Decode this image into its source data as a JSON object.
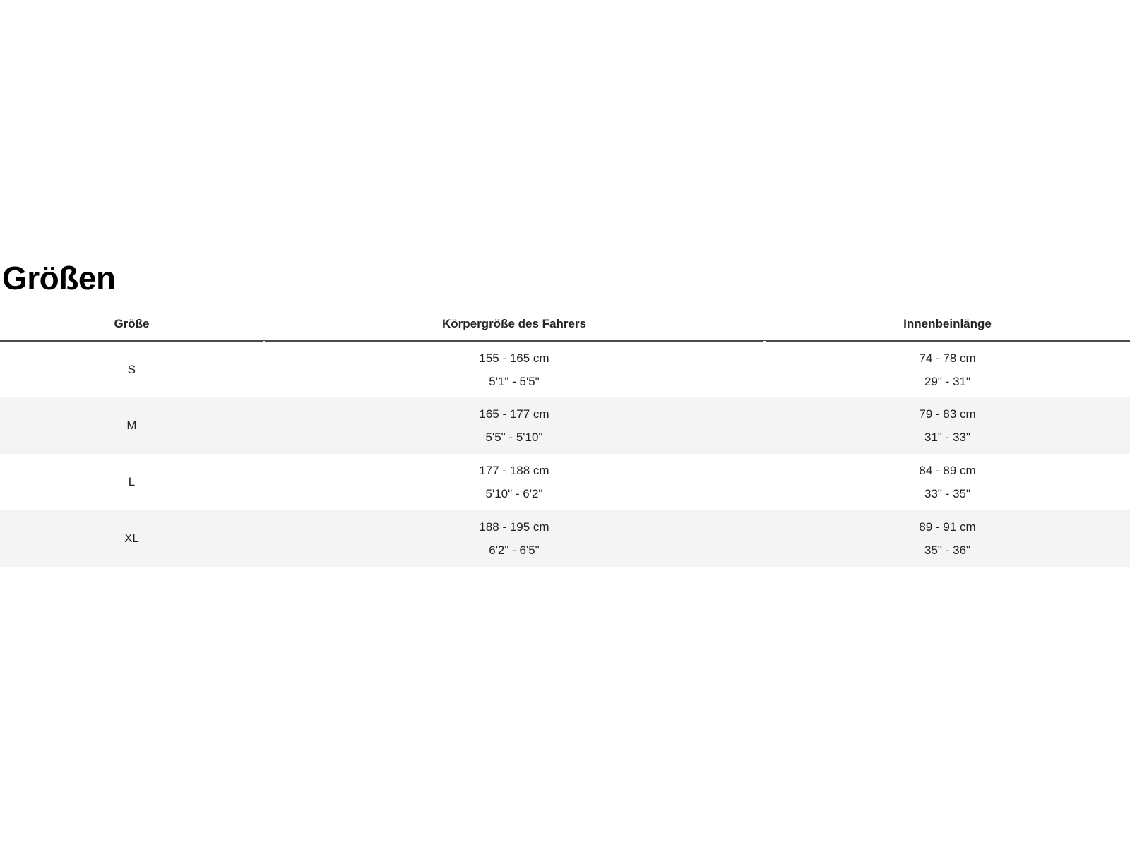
{
  "page": {
    "title": "Größen"
  },
  "table": {
    "columns": [
      {
        "label": "Größe"
      },
      {
        "label": "Körpergröße des Fahrers"
      },
      {
        "label": "Innenbeinlänge"
      }
    ],
    "rows": [
      {
        "size": "S",
        "rider_height_cm": "155 - 165 cm",
        "rider_height_in": "5'1\" - 5'5\"",
        "inseam_cm": "74 - 78 cm",
        "inseam_in": "29\" - 31\""
      },
      {
        "size": "M",
        "rider_height_cm": "165 - 177 cm",
        "rider_height_in": "5'5\" - 5'10\"",
        "inseam_cm": "79 - 83 cm",
        "inseam_in": "31\" - 33\""
      },
      {
        "size": "L",
        "rider_height_cm": "177 - 188 cm",
        "rider_height_in": "5'10\" - 6'2\"",
        "inseam_cm": "84 - 89 cm",
        "inseam_in": "33\" - 35\""
      },
      {
        "size": "XL",
        "rider_height_cm": "188 - 195 cm",
        "rider_height_in": "6'2\" - 6'5\"",
        "inseam_cm": "89 - 91 cm",
        "inseam_in": "35\" - 36\""
      }
    ],
    "colors": {
      "header_border": "#4a4a4a",
      "alt_row_bg": "#f4f4f4",
      "text": "#262626"
    }
  }
}
